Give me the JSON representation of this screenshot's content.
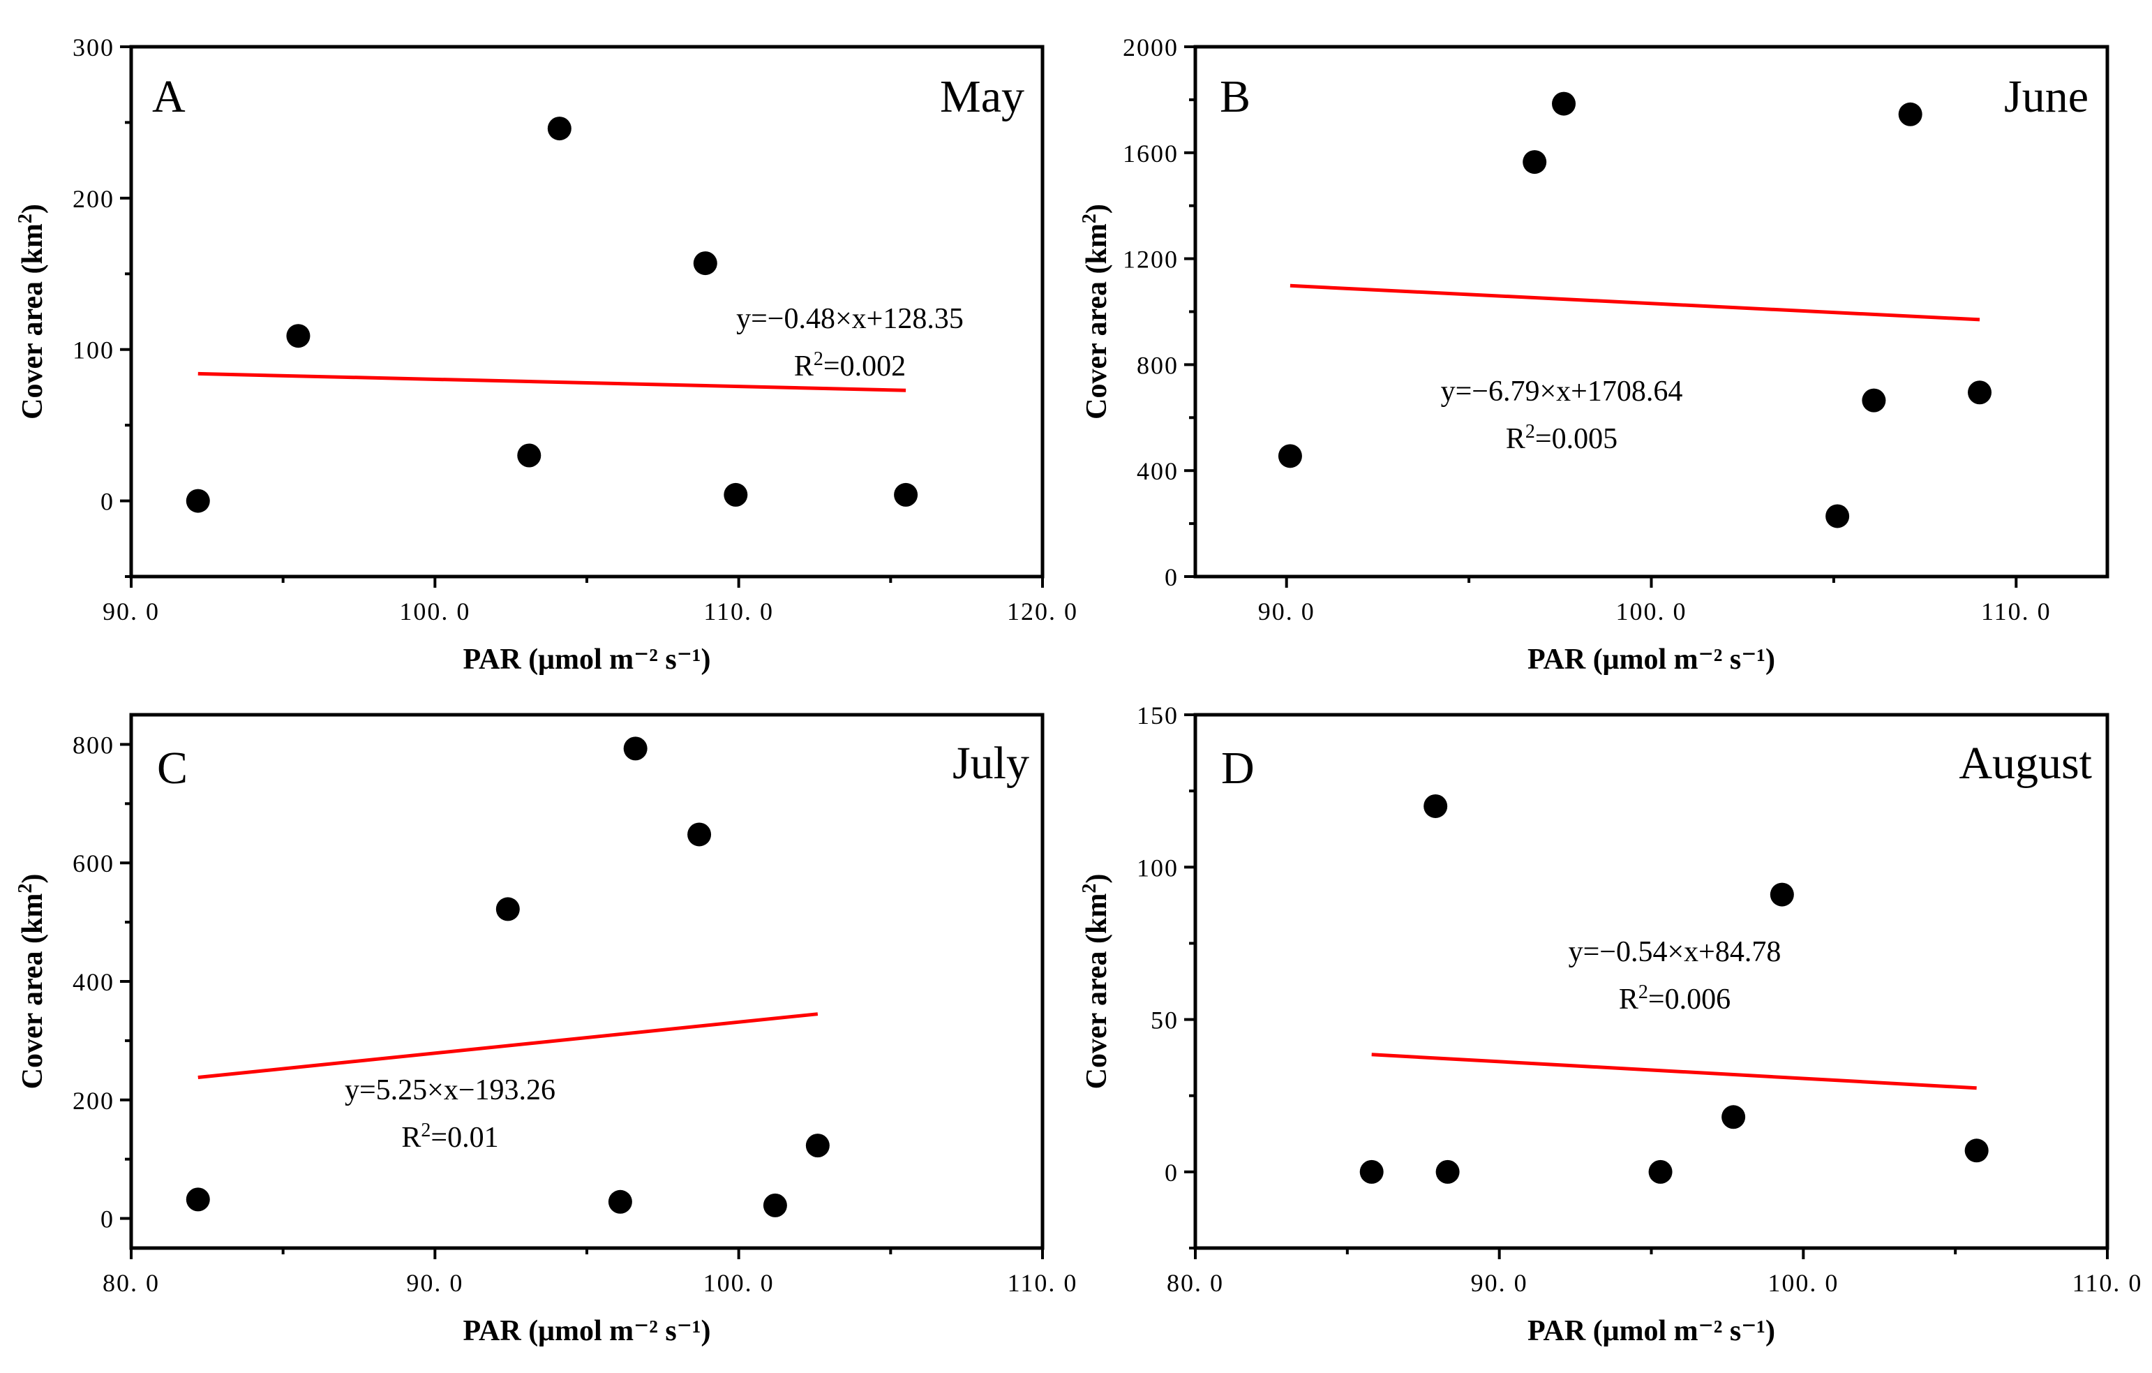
{
  "chart_data": [
    {
      "type": "scatter",
      "panel_label": "A",
      "month": "May",
      "xlabel": "PAR (μmol m⁻² s⁻¹)",
      "ylabel": "Cover area (km²)",
      "xlim": [
        90,
        120
      ],
      "ylim": [
        -50,
        300
      ],
      "xticks": [
        90,
        100,
        110,
        120
      ],
      "xtick_labels": [
        "90. 0",
        "100. 0",
        "110. 0",
        "120. 0"
      ],
      "yticks": [
        0,
        100,
        200,
        300
      ],
      "ytick_labels": [
        "0",
        "100",
        "200",
        "300"
      ],
      "x": [
        92.2,
        95.5,
        103.1,
        104.1,
        108.9,
        109.9,
        115.5
      ],
      "y": [
        0,
        109,
        30,
        246,
        157,
        4,
        4
      ],
      "fit": {
        "x": [
          92.2,
          115.5
        ],
        "slope": -0.48,
        "intercept": 128.35,
        "y": [
          84,
          73
        ]
      },
      "equation": "y=−0.48×x+128.35",
      "r2_label": "R²=0.002"
    },
    {
      "type": "scatter",
      "panel_label": "B",
      "month": "June",
      "xlabel": "PAR (μmol m⁻² s⁻¹)",
      "ylabel": "Cover area (km²)",
      "xlim": [
        87.5,
        112.5
      ],
      "ylim": [
        0,
        2000
      ],
      "xticks": [
        90,
        100,
        110
      ],
      "xtick_labels": [
        "90. 0",
        "100. 0",
        "110. 0"
      ],
      "yticks": [
        0,
        400,
        800,
        1200,
        1600,
        2000
      ],
      "ytick_labels": [
        "0",
        "400",
        "800",
        "1200",
        "1600",
        "2000"
      ],
      "x": [
        90.1,
        96.8,
        97.6,
        105.1,
        106.1,
        107.1,
        109.0
      ],
      "y": [
        455,
        1565,
        1785,
        228,
        665,
        1745,
        695
      ],
      "fit": {
        "x": [
          90.1,
          109.0
        ],
        "slope": -6.79,
        "intercept": 1708.64,
        "y": [
          1098,
          970
        ]
      },
      "equation": "y=−6.79×x+1708.64",
      "r2_label": "R²=0.005"
    },
    {
      "type": "scatter",
      "panel_label": "C",
      "month": "July",
      "xlabel": "PAR (μmol m⁻² s⁻¹)",
      "ylabel": "Cover area (km²)",
      "xlim": [
        80,
        110
      ],
      "ylim": [
        -50,
        850
      ],
      "xticks": [
        80,
        90,
        100,
        110
      ],
      "xtick_labels": [
        "80. 0",
        "90. 0",
        "100. 0",
        "110. 0"
      ],
      "yticks": [
        0,
        200,
        400,
        600,
        800
      ],
      "ytick_labels": [
        "0",
        "200",
        "400",
        "600",
        "800"
      ],
      "x": [
        82.2,
        92.4,
        96.1,
        96.6,
        98.7,
        101.2,
        102.6
      ],
      "y": [
        32,
        522,
        28,
        793,
        648,
        22,
        123
      ],
      "fit": {
        "x": [
          82.2,
          102.6
        ],
        "slope": 5.25,
        "intercept": -193.26,
        "y": [
          238,
          345
        ]
      },
      "equation": "y=5.25×x−193.26",
      "r2_label": "R²=0.01"
    },
    {
      "type": "scatter",
      "panel_label": "D",
      "month": "August",
      "xlabel": "PAR (μmol m⁻² s⁻¹)",
      "ylabel": "Cover area (km²)",
      "xlim": [
        80,
        110
      ],
      "ylim": [
        -25,
        150
      ],
      "xticks": [
        80,
        90,
        100,
        110
      ],
      "xtick_labels": [
        "80. 0",
        "90. 0",
        "100. 0",
        "110. 0"
      ],
      "yticks": [
        0,
        50,
        100,
        150
      ],
      "ytick_labels": [
        "0",
        "50",
        "100",
        "150"
      ],
      "x": [
        85.8,
        87.9,
        88.3,
        95.3,
        97.7,
        99.3,
        105.7
      ],
      "y": [
        0,
        120,
        0,
        0,
        18,
        91,
        7
      ],
      "fit": {
        "x": [
          85.8,
          105.7
        ],
        "slope": -0.54,
        "intercept": 84.78,
        "y": [
          38.5,
          27.5
        ]
      },
      "equation": "y=−0.54×x+84.78",
      "r2_label": "R²=0.006"
    }
  ]
}
